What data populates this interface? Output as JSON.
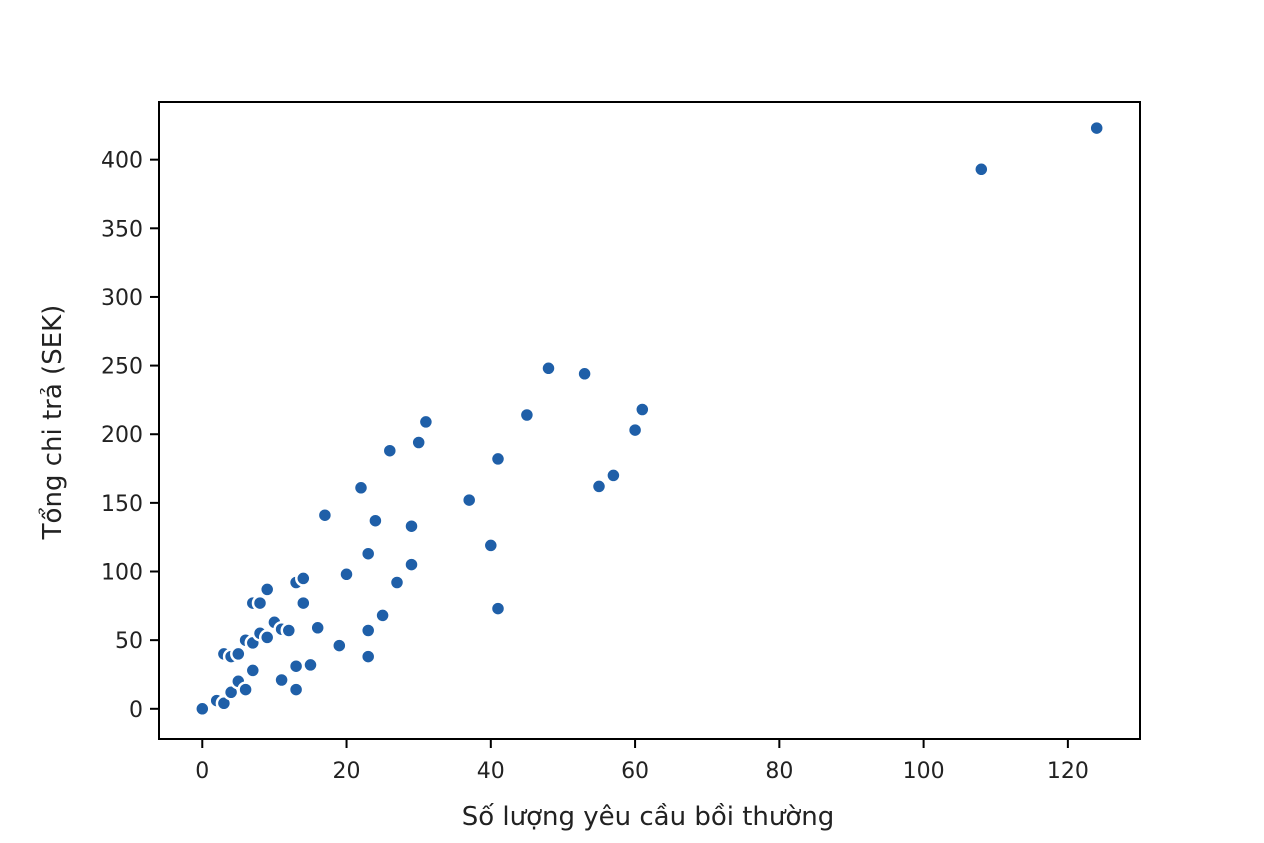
{
  "chart_data": {
    "type": "scatter",
    "title": "",
    "xlabel": "Số lượng yêu cầu bồi thường",
    "ylabel": "Tổng chi trả (SEK)",
    "xlim": [
      -6,
      130
    ],
    "ylim": [
      -22,
      442
    ],
    "xticks": [
      0,
      20,
      40,
      60,
      80,
      100,
      120
    ],
    "yticks": [
      0,
      50,
      100,
      150,
      200,
      250,
      300,
      350,
      400
    ],
    "grid": false,
    "legend": "none",
    "marker_color": "#1f5fa8",
    "series": [
      {
        "points": [
          [
            0,
            0
          ],
          [
            2,
            6
          ],
          [
            3,
            4
          ],
          [
            3,
            40
          ],
          [
            4,
            12
          ],
          [
            4,
            38
          ],
          [
            5,
            20
          ],
          [
            5,
            40
          ],
          [
            6,
            14
          ],
          [
            6,
            50
          ],
          [
            7,
            28
          ],
          [
            7,
            48
          ],
          [
            7,
            77
          ],
          [
            8,
            55
          ],
          [
            8,
            77
          ],
          [
            9,
            52
          ],
          [
            9,
            87
          ],
          [
            10,
            63
          ],
          [
            11,
            58
          ],
          [
            11,
            21
          ],
          [
            12,
            57
          ],
          [
            13,
            31
          ],
          [
            13,
            14
          ],
          [
            13,
            92
          ],
          [
            14,
            95
          ],
          [
            14,
            77
          ],
          [
            15,
            32
          ],
          [
            16,
            59
          ],
          [
            17,
            141
          ],
          [
            19,
            46
          ],
          [
            20,
            98
          ],
          [
            22,
            161
          ],
          [
            23,
            113
          ],
          [
            23,
            57
          ],
          [
            23,
            38
          ],
          [
            24,
            137
          ],
          [
            25,
            68
          ],
          [
            26,
            188
          ],
          [
            27,
            92
          ],
          [
            29,
            133
          ],
          [
            29,
            105
          ],
          [
            30,
            194
          ],
          [
            31,
            209
          ],
          [
            37,
            152
          ],
          [
            40,
            119
          ],
          [
            41,
            182
          ],
          [
            41,
            73
          ],
          [
            45,
            214
          ],
          [
            48,
            248
          ],
          [
            53,
            244
          ],
          [
            55,
            162
          ],
          [
            57,
            170
          ],
          [
            60,
            203
          ],
          [
            61,
            218
          ],
          [
            108,
            393
          ],
          [
            124,
            423
          ]
        ]
      }
    ]
  }
}
